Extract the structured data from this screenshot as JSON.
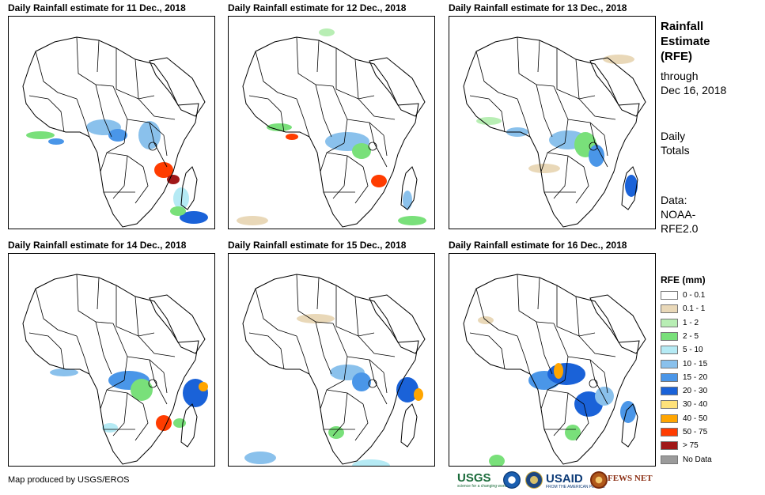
{
  "panels": [
    {
      "title": "Daily Rainfall estimate for 11 Dec., 2018"
    },
    {
      "title": "Daily Rainfall estimate for 12 Dec., 2018"
    },
    {
      "title": "Daily Rainfall estimate for 13 Dec., 2018"
    },
    {
      "title": "Daily Rainfall estimate for 14 Dec., 2018"
    },
    {
      "title": "Daily Rainfall estimate for 15 Dec., 2018"
    },
    {
      "title": "Daily Rainfall estimate for 16 Dec., 2018"
    }
  ],
  "sidebar": {
    "title_lines": [
      "Rainfall",
      "Estimate",
      "(RFE)"
    ],
    "through_lines": [
      "through",
      "Dec 16, 2018"
    ],
    "totals_lines": [
      "Daily",
      "Totals"
    ],
    "data_lines": [
      "Data:",
      "NOAA-",
      "RFE2.0"
    ]
  },
  "legend": {
    "title": "RFE (mm)",
    "items": [
      {
        "label": "0 - 0.1",
        "color": "#ffffff"
      },
      {
        "label": "0.1 - 1",
        "color": "#e9d8b8"
      },
      {
        "label": "1 - 2",
        "color": "#b8eeb4"
      },
      {
        "label": "2 - 5",
        "color": "#79e07a"
      },
      {
        "label": "5 - 10",
        "color": "#b5eaf4"
      },
      {
        "label": "10 - 15",
        "color": "#8ac1ec"
      },
      {
        "label": "15 - 20",
        "color": "#4a96e8"
      },
      {
        "label": "20 - 30",
        "color": "#1a62d8"
      },
      {
        "label": "30 - 40",
        "color": "#ffe27a"
      },
      {
        "label": "40 - 50",
        "color": "#ffa500"
      },
      {
        "label": "50 - 75",
        "color": "#ff3c00"
      },
      {
        "label": "> 75",
        "color": "#a01818"
      },
      {
        "label": "No Data",
        "color": "#9b9b9b"
      }
    ]
  },
  "footer": {
    "credit": "Map produced by USGS/EROS"
  },
  "logos": {
    "usgs": "USGS",
    "usgs_tagline": "science for a changing world",
    "usaid": "USAID",
    "usaid_tagline": "FROM THE AMERICAN PEOPLE",
    "fews": "FEWS NET"
  }
}
